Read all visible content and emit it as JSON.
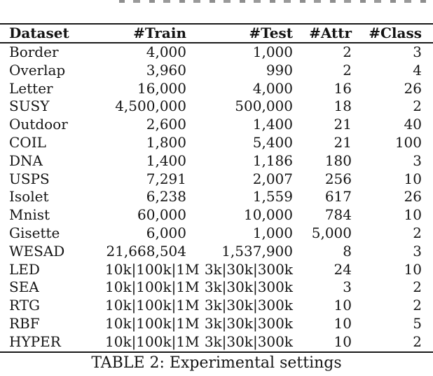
{
  "table": {
    "columns": [
      "Dataset",
      "#Train",
      "#Test",
      "#Attr",
      "#Class"
    ],
    "rows": [
      [
        "Border",
        "4,000",
        "1,000",
        "2",
        "3"
      ],
      [
        "Overlap",
        "3,960",
        "990",
        "2",
        "4"
      ],
      [
        "Letter",
        "16,000",
        "4,000",
        "16",
        "26"
      ],
      [
        "SUSY",
        "4,500,000",
        "500,000",
        "18",
        "2"
      ],
      [
        "Outdoor",
        "2,600",
        "1,400",
        "21",
        "40"
      ],
      [
        "COIL",
        "1,800",
        "5,400",
        "21",
        "100"
      ],
      [
        "DNA",
        "1,400",
        "1,186",
        "180",
        "3"
      ],
      [
        "USPS",
        "7,291",
        "2,007",
        "256",
        "10"
      ],
      [
        "Isolet",
        "6,238",
        "1,559",
        "617",
        "26"
      ],
      [
        "Mnist",
        "60,000",
        "10,000",
        "784",
        "10"
      ],
      [
        "Gisette",
        "6,000",
        "1,000",
        "5,000",
        "2"
      ],
      [
        "WESAD",
        "21,668,504",
        "1,537,900",
        "8",
        "3"
      ],
      [
        "LED",
        "10k|100k|1M",
        "3k|30k|300k",
        "24",
        "10"
      ],
      [
        "SEA",
        "10k|100k|1M",
        "3k|30k|300k",
        "3",
        "2"
      ],
      [
        "RTG",
        "10k|100k|1M",
        "3k|30k|300k",
        "10",
        "2"
      ],
      [
        "RBF",
        "10k|100k|1M",
        "3k|30k|300k",
        "10",
        "5"
      ],
      [
        "HYPER",
        "10k|100k|1M",
        "3k|30k|300k",
        "10",
        "2"
      ]
    ],
    "caption": "TABLE 2: Experimental settings"
  },
  "colors": {
    "text": "#141414",
    "rule": "#1a1a1a",
    "background": "#ffffff"
  }
}
